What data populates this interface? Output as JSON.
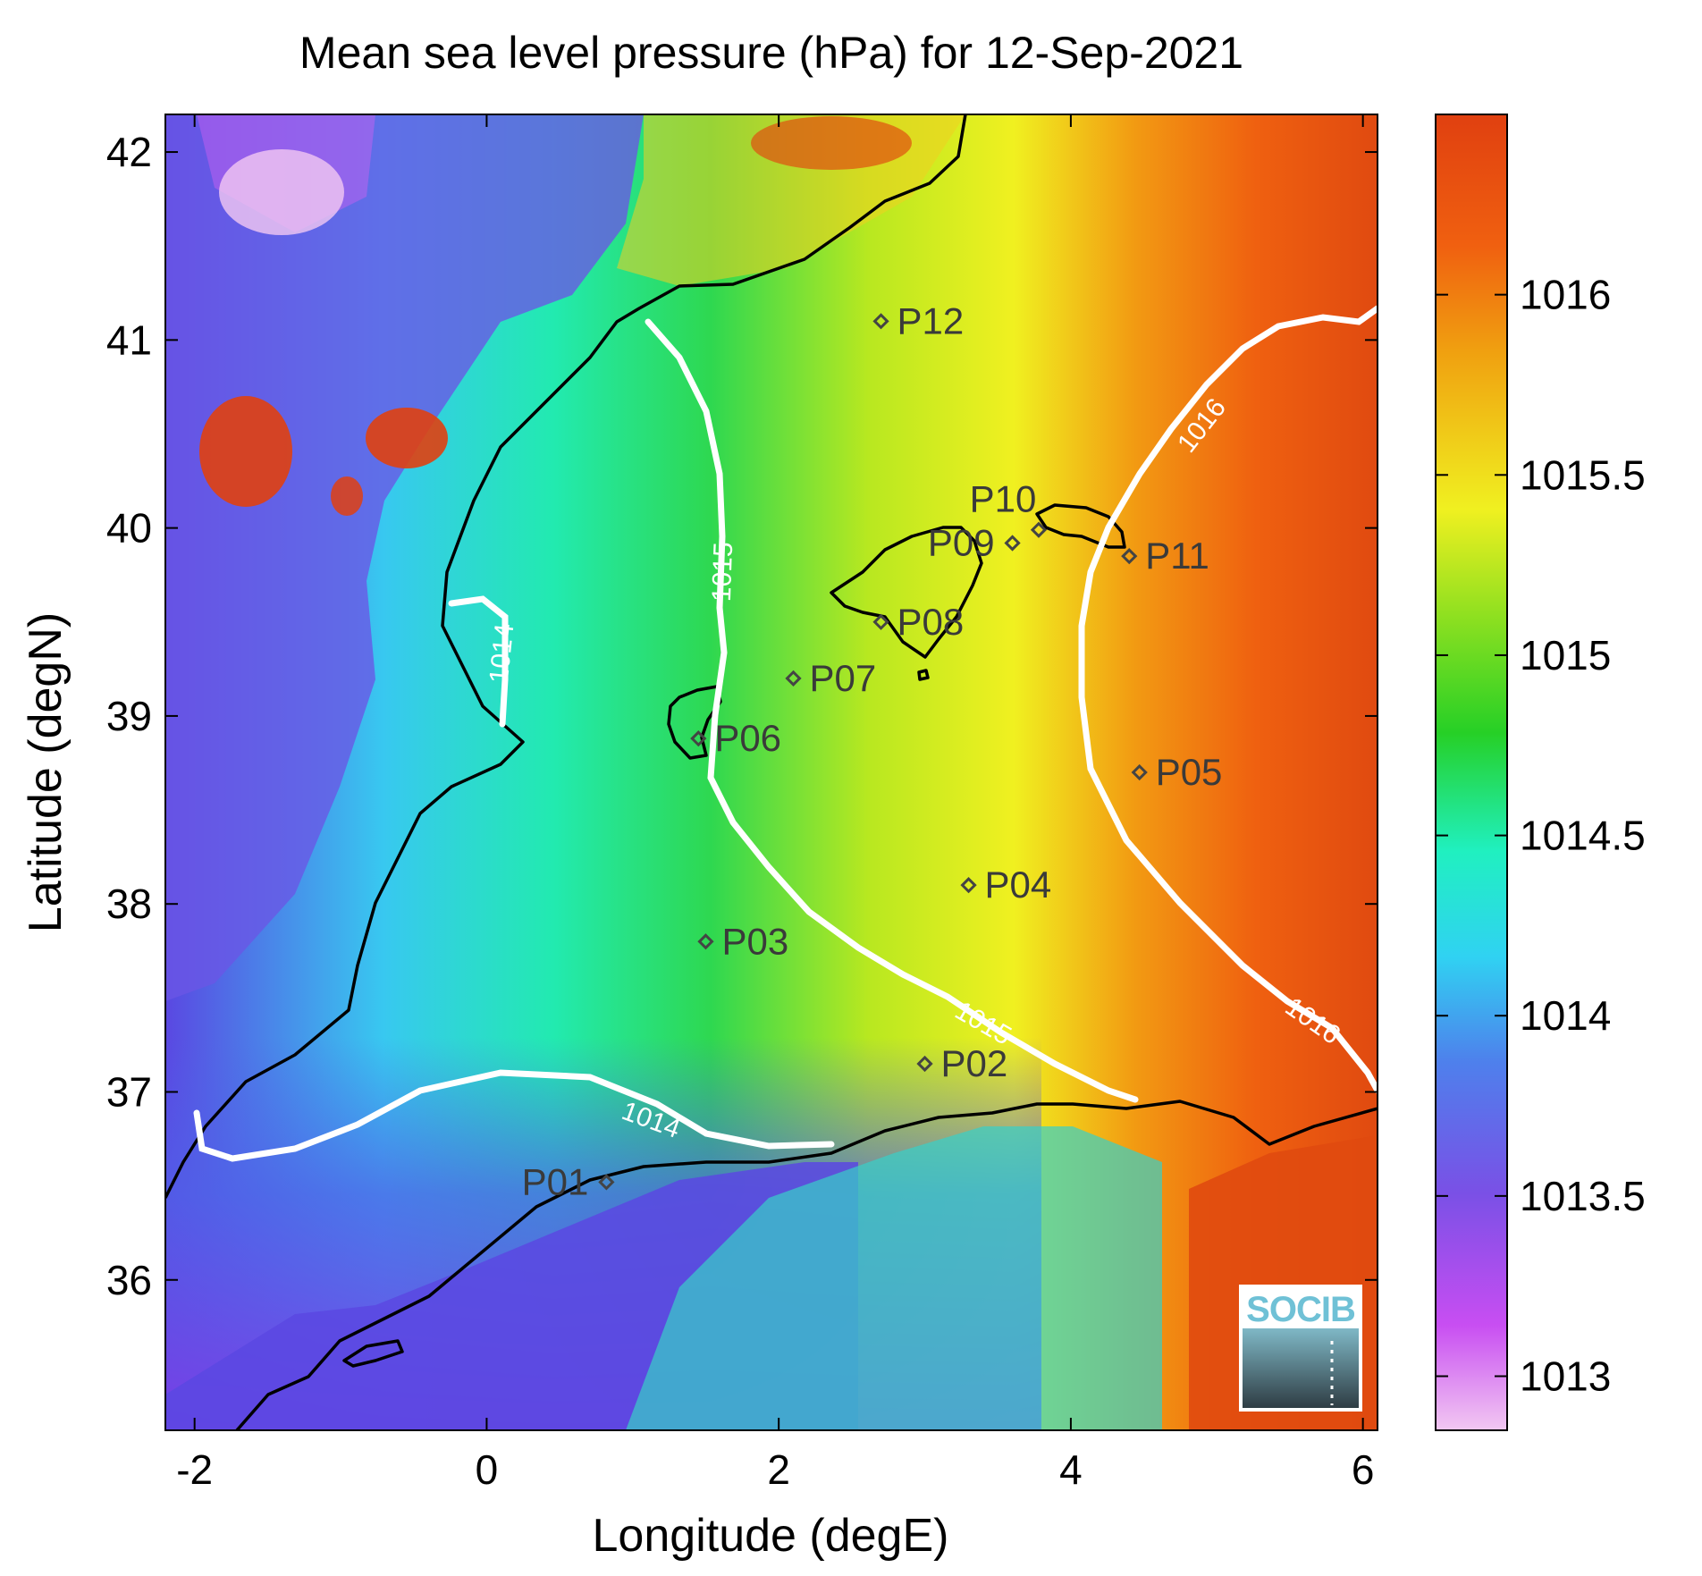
{
  "title": "Mean sea level pressure (hPa) for 12-Sep-2021",
  "x_axis": {
    "label": "Longitude (degE)",
    "range": [
      -2.2,
      6.1
    ],
    "ticks": [
      "-2",
      "0",
      "2",
      "4",
      "6"
    ],
    "tick_values": [
      -2,
      0,
      2,
      4,
      6
    ]
  },
  "y_axis": {
    "label": "Latitude (degN)",
    "range": [
      35.2,
      42.2
    ],
    "ticks": [
      "36",
      "37",
      "38",
      "39",
      "40",
      "41",
      "42"
    ],
    "tick_values": [
      36,
      37,
      38,
      39,
      40,
      41,
      42
    ]
  },
  "colorbar": {
    "range": [
      1012.85,
      1016.5
    ],
    "ticks": [
      "1013",
      "1013.5",
      "1014",
      "1014.5",
      "1015",
      "1015.5",
      "1016"
    ],
    "tick_values": [
      1013,
      1013.5,
      1014,
      1014.5,
      1015,
      1015.5,
      1016
    ],
    "colormap": [
      "#f2c8f2",
      "#c84ef2",
      "#7a50e6",
      "#4e80ec",
      "#30d2f2",
      "#20f0c0",
      "#30e060",
      "#26d026",
      "#90e020",
      "#f0f020",
      "#f0a010",
      "#f06010",
      "#e04010"
    ]
  },
  "contour_labels": [
    "1014",
    "1014",
    "1015",
    "1015",
    "1016",
    "1016"
  ],
  "stations": [
    {
      "id": "P01",
      "lon": 0.82,
      "lat": 36.52
    },
    {
      "id": "P02",
      "lon": 3.0,
      "lat": 37.15
    },
    {
      "id": "P03",
      "lon": 1.5,
      "lat": 37.8
    },
    {
      "id": "P04",
      "lon": 3.3,
      "lat": 38.1
    },
    {
      "id": "P05",
      "lon": 4.47,
      "lat": 38.7
    },
    {
      "id": "P06",
      "lon": 1.45,
      "lat": 38.88
    },
    {
      "id": "P07",
      "lon": 2.1,
      "lat": 39.2
    },
    {
      "id": "P08",
      "lon": 2.7,
      "lat": 39.5
    },
    {
      "id": "P09",
      "lon": 3.6,
      "lat": 39.92
    },
    {
      "id": "P10",
      "lon": 3.78,
      "lat": 39.99
    },
    {
      "id": "P11",
      "lon": 4.4,
      "lat": 39.85
    },
    {
      "id": "P12",
      "lon": 2.7,
      "lat": 41.1
    }
  ],
  "logo": {
    "text": "SOCIB"
  }
}
